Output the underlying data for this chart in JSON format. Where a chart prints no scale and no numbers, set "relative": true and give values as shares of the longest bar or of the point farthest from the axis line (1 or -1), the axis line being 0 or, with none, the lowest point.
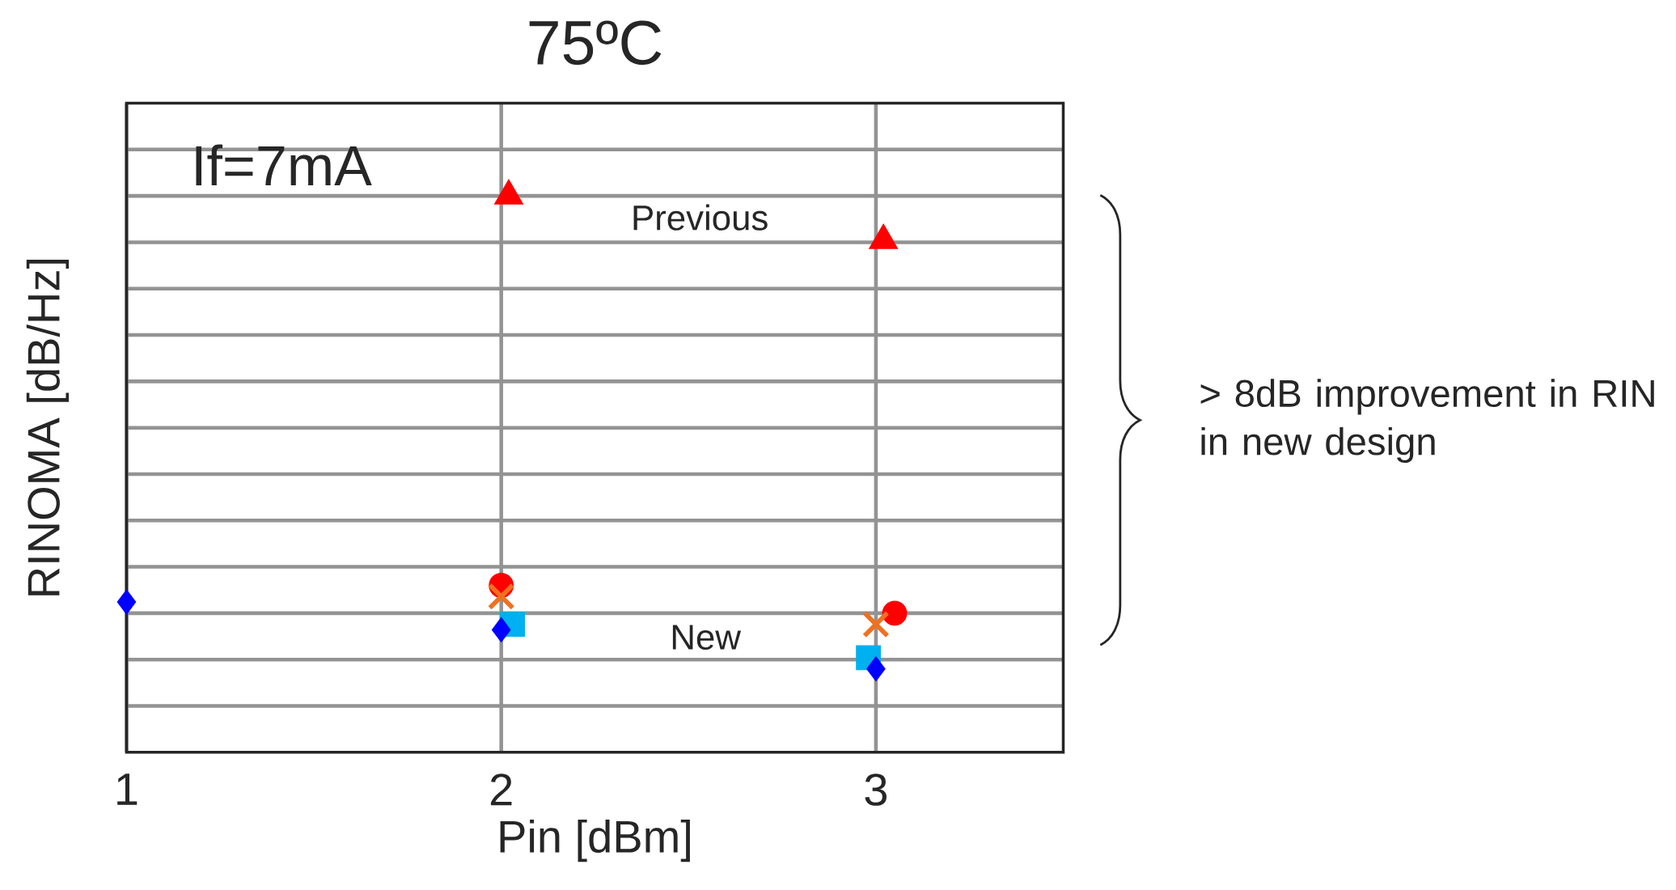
{
  "chart_data": {
    "type": "scatter",
    "title": "75ºC",
    "xlabel": "Pin [dBm]",
    "ylabel": "RINOMA [dB/Hz]",
    "relative": true,
    "xlim": [
      1,
      3.5
    ],
    "xticks": [
      1,
      2,
      3
    ],
    "grid": true,
    "annotations": [
      "If=7mA",
      "Previous",
      "New",
      "> 8dB improvement in RIN in new design"
    ],
    "series": [
      {
        "color": "#ff0000",
        "marker": "triangle",
        "x": [
          2.02,
          3.02
        ],
        "values": [
          1,
          0.92
        ]
      },
      {
        "color": "#ff0000",
        "marker": "circle",
        "x": [
          2.0,
          3.05
        ],
        "values": [
          0.3,
          0.25
        ]
      },
      {
        "color": "#f07020",
        "marker": "cross",
        "x": [
          2.0,
          3.0
        ],
        "values": [
          0.28,
          0.23
        ]
      },
      {
        "color": "#00b0f0",
        "marker": "square",
        "x": [
          2.03,
          2.98
        ],
        "values": [
          0.23,
          0.17
        ]
      },
      {
        "color": "#0000ff",
        "marker": "diamond",
        "x": [
          1.0,
          2.0,
          3.0
        ],
        "values": [
          0.27,
          0.22,
          0.15
        ]
      }
    ]
  }
}
